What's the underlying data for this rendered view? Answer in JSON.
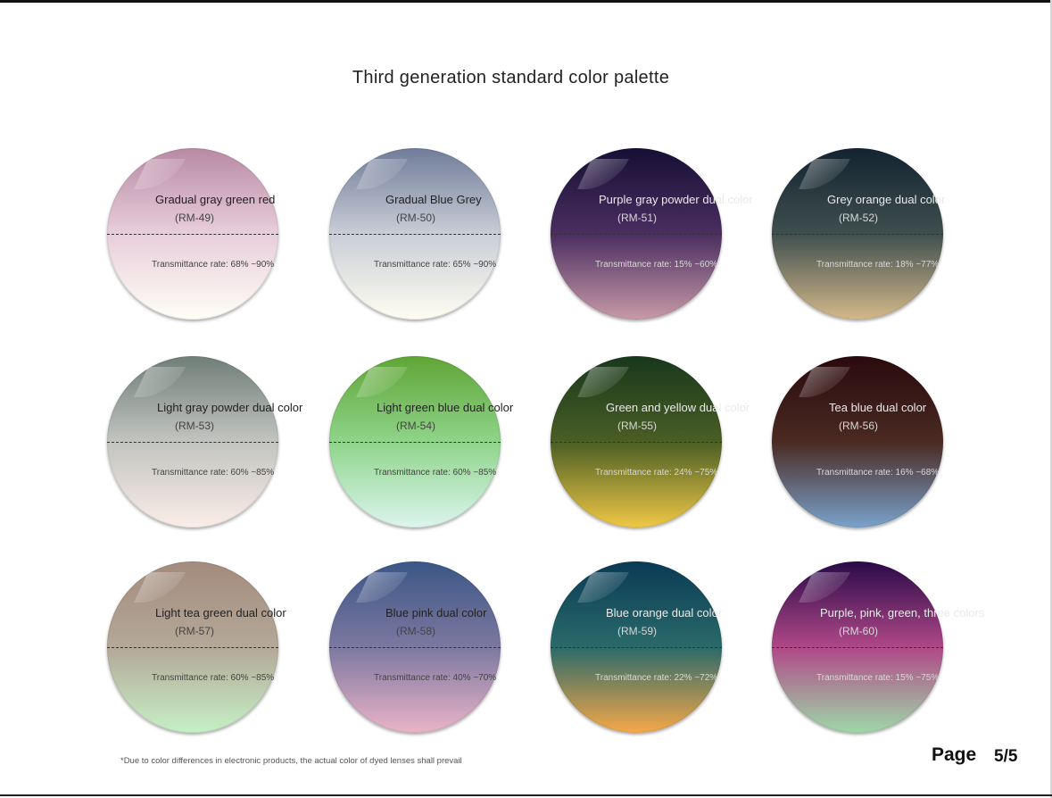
{
  "title": "Third generation standard color palette",
  "lenses": [
    {
      "name": "Gradual gray green red",
      "code": "(RM-49)",
      "transmittance": "Transmittance rate: 68% ~90%",
      "top_color": "#b88aa3",
      "mid_color": "#e8cedb",
      "bottom_color": "#fffef6"
    },
    {
      "name": "Gradual Blue Grey",
      "code": "(RM-50)",
      "transmittance": "Transmittance rate: 65% ~90%",
      "top_color": "#707c99",
      "mid_color": "#c9cdd6",
      "bottom_color": "#fffdf2"
    },
    {
      "name": "Purple gray powder dual color",
      "code": "(RM-51)",
      "transmittance": "Transmittance rate: 15% ~60%",
      "top_color": "#160f35",
      "mid_color": "#4a2e60",
      "bottom_color": "#c89aa8"
    },
    {
      "name": "Grey orange dual color",
      "code": "(RM-52)",
      "transmittance": "Transmittance rate: 18% ~77%",
      "top_color": "#132330",
      "mid_color": "#3f4f4e",
      "bottom_color": "#d4b98a"
    },
    {
      "name": "Light gray powder dual color",
      "code": "(RM-53)",
      "transmittance": "Transmittance rate: 60% ~85%",
      "top_color": "#6f7e78",
      "mid_color": "#c2c4c0",
      "bottom_color": "#fbede8"
    },
    {
      "name": "Light green blue dual color",
      "code": "(RM-54)",
      "transmittance": "Transmittance rate: 60% ~85%",
      "top_color": "#5fa535",
      "mid_color": "#8fd48a",
      "bottom_color": "#dcf5ee"
    },
    {
      "name": "Green and yellow dual color",
      "code": "(RM-55)",
      "transmittance": "Transmittance rate: 24% ~75%",
      "top_color": "#18381c",
      "mid_color": "#4a5e25",
      "bottom_color": "#f0c845"
    },
    {
      "name": "Tea blue dual color",
      "code": "(RM-56)",
      "transmittance": "Transmittance rate: 16% ~68%",
      "top_color": "#2a0a0c",
      "mid_color": "#4a2a22",
      "bottom_color": "#7aa2cc"
    },
    {
      "name": "Light tea green dual color",
      "code": "(RM-57)",
      "transmittance": "Transmittance rate: 60% ~85%",
      "top_color": "#a38b7d",
      "mid_color": "#b4a898",
      "bottom_color": "#c6f0c6"
    },
    {
      "name": "Blue pink dual color",
      "code": "(RM-58)",
      "transmittance": "Transmittance rate: 40% ~70%",
      "top_color": "#3b5686",
      "mid_color": "#7c78a0",
      "bottom_color": "#eab4c8"
    },
    {
      "name": "Blue orange dual color",
      "code": "(RM-59)",
      "transmittance": "Transmittance rate: 22% ~72%",
      "top_color": "#0a3a55",
      "mid_color": "#2a6a6a",
      "bottom_color": "#f5a848"
    },
    {
      "name": "Purple, pink, green, three colors",
      "code": "(RM-60)",
      "transmittance": "Transmittance rate: 15% ~75%",
      "top_color": "#2a0a48",
      "mid_color": "#b04888",
      "bottom_color": "#9ed8a8"
    }
  ],
  "footnote": "*Due to color differences in electronic products, the actual color of dyed lenses shall prevail",
  "page": {
    "label": "Page",
    "number": "5/5"
  }
}
